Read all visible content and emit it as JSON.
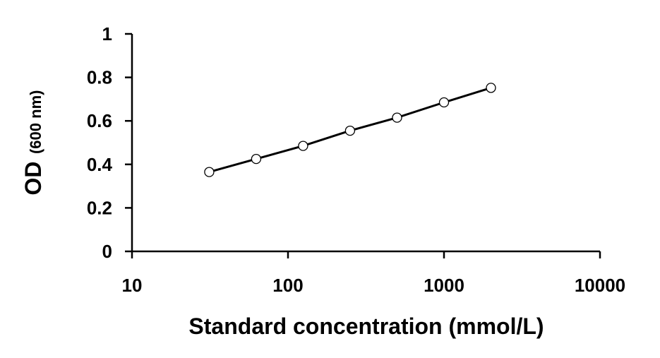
{
  "chart_data": {
    "type": "line",
    "xscale": "log",
    "xlim": [
      10,
      10000
    ],
    "ylim": [
      0,
      1
    ],
    "xticks": [
      "10",
      "100",
      "1000",
      "10000"
    ],
    "yticks": [
      "0",
      "0.2",
      "0.4",
      "0.6",
      "0.8",
      "1"
    ],
    "xlabel": "Standard concentration (mmol/L)",
    "ylabel": {
      "main": "OD",
      "unit": "(600 nm)"
    },
    "grid": false,
    "series": [
      {
        "x": [
          31.25,
          62.5,
          125,
          250,
          500,
          1000,
          2000
        ],
        "y": [
          0.365,
          0.425,
          0.485,
          0.555,
          0.615,
          0.685,
          0.752
        ],
        "color": "#000000",
        "marker": "open-circle"
      }
    ]
  }
}
